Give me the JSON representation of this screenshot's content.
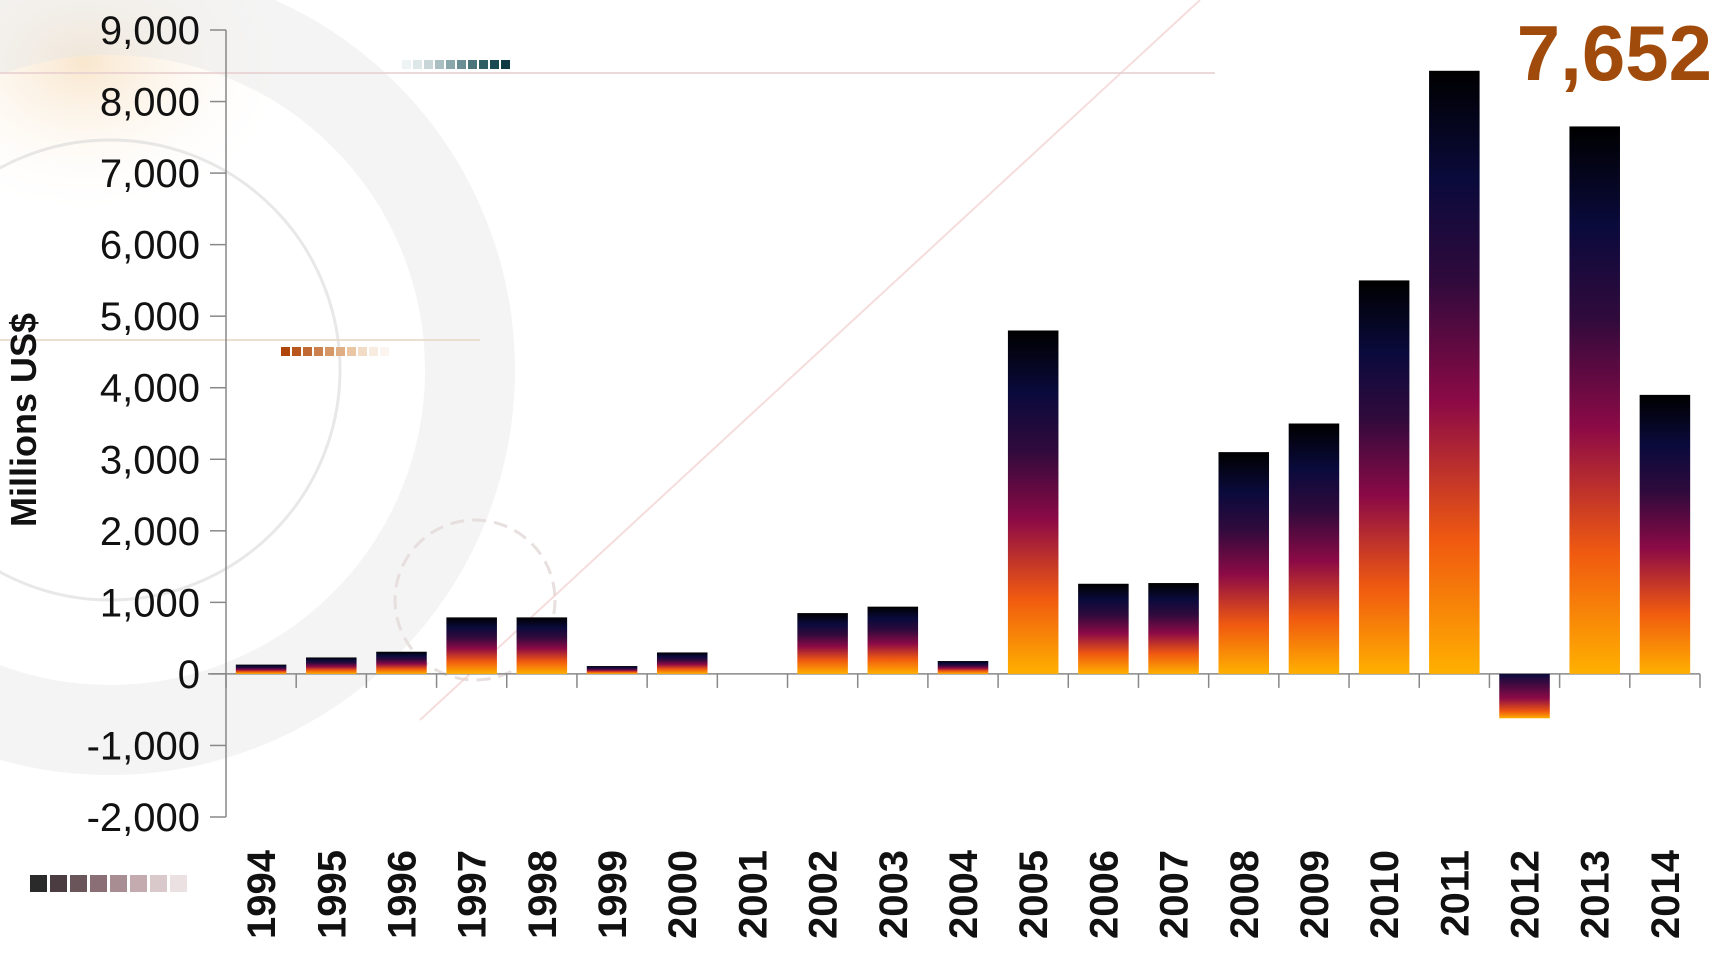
{
  "chart_data": {
    "type": "bar",
    "title": "",
    "xlabel": "",
    "ylabel": "Millions US$",
    "ylim": [
      -2000,
      9000
    ],
    "yticks": [
      9000,
      8000,
      7000,
      6000,
      5000,
      4000,
      3000,
      2000,
      1000,
      0,
      -1000,
      -2000
    ],
    "ytick_labels": [
      "9,000",
      "8,000",
      "7,000",
      "6,000",
      "5,000",
      "4,000",
      "3,000",
      "2,000",
      "1,000",
      "0",
      "-1,000",
      "-2,000"
    ],
    "categories": [
      "1994",
      "1995",
      "1996",
      "1997",
      "1998",
      "1999",
      "2000",
      "2001",
      "2002",
      "2003",
      "2004",
      "2005",
      "2006",
      "2007",
      "2008",
      "2009",
      "2010",
      "2011",
      "2012",
      "2013",
      "2014"
    ],
    "values": [
      130,
      230,
      310,
      790,
      790,
      110,
      300,
      0,
      850,
      940,
      180,
      4800,
      1260,
      1270,
      3100,
      3500,
      5500,
      8430,
      -620,
      7652,
      3900
    ],
    "grid": false,
    "legend": "none",
    "callout": {
      "text": "7,652",
      "color": "#a04b0c"
    },
    "gradient_colors": [
      "#ffb000",
      "#f05a10",
      "#8c0a46",
      "#300a3c",
      "#0a0a3c",
      "#000000"
    ]
  }
}
